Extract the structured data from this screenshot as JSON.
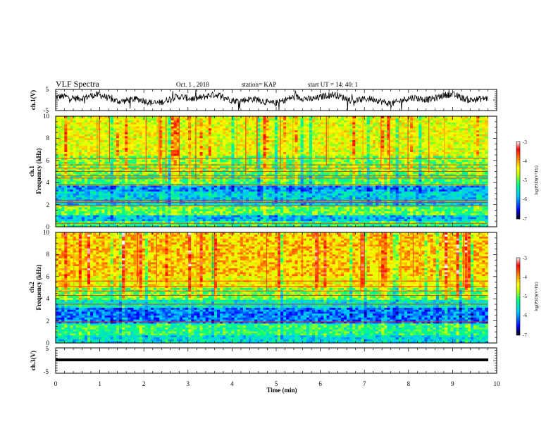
{
  "header": {
    "title": "VLF Spectra",
    "date": "Oct. 1 , 2018",
    "station": "station= KAP",
    "start": "start UT =  14: 40: 1"
  },
  "chart_data": {
    "type": "heatmap",
    "x": {
      "label": "Time (min)",
      "range": [
        0,
        10
      ],
      "ticks": [
        "0",
        "1",
        "2",
        "3",
        "4",
        "5",
        "6",
        "7",
        "8",
        "9",
        "10"
      ]
    },
    "panels": [
      {
        "name": "ch.1(V)",
        "type": "line",
        "ylabel": "ch.1(V)",
        "ylim": [
          -5,
          5
        ],
        "yticks": [
          "5",
          "-5"
        ],
        "trace_level": 0.5,
        "data_end_min": 9.8
      },
      {
        "name": "ch.1 Frequency (kHz)",
        "type": "heatmap",
        "ylabel_channel": "ch.1",
        "ylabel": "Frequency (kHz)",
        "ylim": [
          0,
          10
        ],
        "yticks": [
          "0",
          "2",
          "4",
          "6",
          "8",
          "10"
        ],
        "data_end_min": 9.8,
        "bands_khz": [
          {
            "from": 0.0,
            "to": 0.5,
            "level": -5.2
          },
          {
            "from": 0.5,
            "to": 1.0,
            "level": -5.8
          },
          {
            "from": 1.0,
            "to": 2.0,
            "level": -5.0
          },
          {
            "from": 2.0,
            "to": 3.2,
            "level": -5.7
          },
          {
            "from": 3.2,
            "to": 3.8,
            "level": -6.0
          },
          {
            "from": 3.8,
            "to": 4.9,
            "level": -5.1
          },
          {
            "from": 4.9,
            "to": 6.5,
            "level": -4.9
          },
          {
            "from": 6.5,
            "to": 10.0,
            "level": -4.5
          }
        ],
        "lines_khz": [
          0.3,
          1.9,
          2.2,
          2.4,
          3.8,
          4.4,
          4.6,
          5.0,
          5.3,
          5.6,
          6.2
        ]
      },
      {
        "name": "ch.2 Frequency (kHz)",
        "type": "heatmap",
        "ylabel_channel": "ch.2",
        "ylabel": "Frequency (kHz)",
        "ylim": [
          0,
          10
        ],
        "yticks": [
          "0",
          "2",
          "4",
          "6",
          "8",
          "10"
        ],
        "data_end_min": 9.8,
        "bands_khz": [
          {
            "from": 0.0,
            "to": 0.8,
            "level": -5.6
          },
          {
            "from": 0.8,
            "to": 1.8,
            "level": -5.2
          },
          {
            "from": 1.8,
            "to": 3.3,
            "level": -6.1
          },
          {
            "from": 3.3,
            "to": 4.0,
            "level": -5.5
          },
          {
            "from": 4.0,
            "to": 5.0,
            "level": -4.9
          },
          {
            "from": 5.0,
            "to": 6.0,
            "level": -4.4
          },
          {
            "from": 6.0,
            "to": 10.0,
            "level": -4.2
          }
        ],
        "lines_khz": [
          1.9,
          3.5,
          4.3,
          4.7,
          5.1,
          5.6
        ]
      },
      {
        "name": "ch.3(V)",
        "type": "line",
        "ylabel": "ch.3(V)",
        "ylim": [
          -5,
          5
        ],
        "yticks": [
          "5",
          "-5"
        ],
        "trace_level": 0.5,
        "data_end_min": 9.8
      }
    ],
    "colorbar": {
      "label": "log(PSD)(V²/Hz)",
      "range": [
        -7,
        -3
      ],
      "ticks": [
        "-3",
        "-4",
        "-5",
        "-6",
        "-7"
      ],
      "colors": [
        "#000000",
        "#0000ff",
        "#00c8ff",
        "#00ff80",
        "#c8ff00",
        "#ffff00",
        "#ff8000",
        "#ff0000",
        "#ffffff"
      ]
    }
  }
}
